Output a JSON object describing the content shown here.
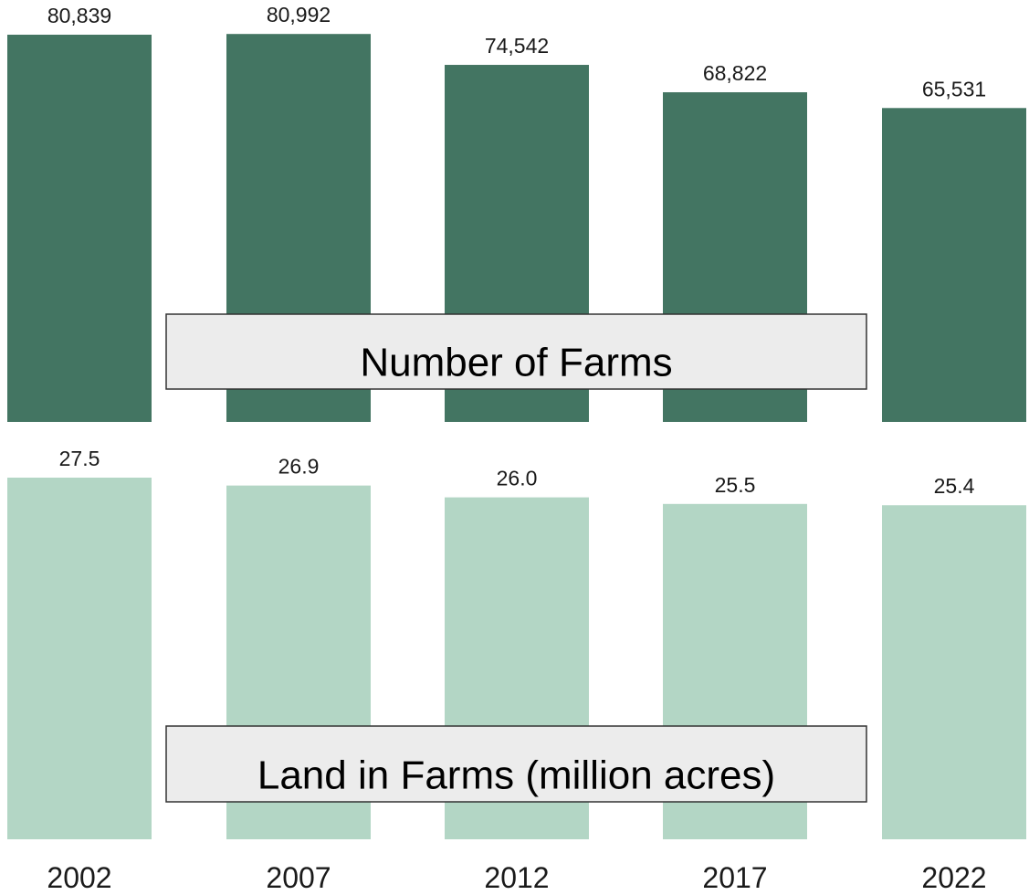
{
  "chart_data": [
    {
      "type": "bar",
      "title": "Number of Farms",
      "categories": [
        "2002",
        "2007",
        "2012",
        "2017",
        "2022"
      ],
      "values": [
        80839,
        80992,
        74542,
        68822,
        65531
      ],
      "value_labels": [
        "80,839",
        "80,992",
        "74,542",
        "68,822",
        "65,531"
      ],
      "color": "#437562",
      "grid": false,
      "legend": "none"
    },
    {
      "type": "bar",
      "title": "Land in Farms (million acres)",
      "categories": [
        "2002",
        "2007",
        "2012",
        "2017",
        "2022"
      ],
      "values": [
        27.5,
        26.9,
        26.0,
        25.5,
        25.4
      ],
      "value_labels": [
        "27.5",
        "26.9",
        "26.0",
        "25.5",
        "25.4"
      ],
      "color": "#b3d6c5",
      "grid": false,
      "legend": "none"
    }
  ],
  "x_axis_labels": [
    "2002",
    "2007",
    "2012",
    "2017",
    "2022"
  ]
}
